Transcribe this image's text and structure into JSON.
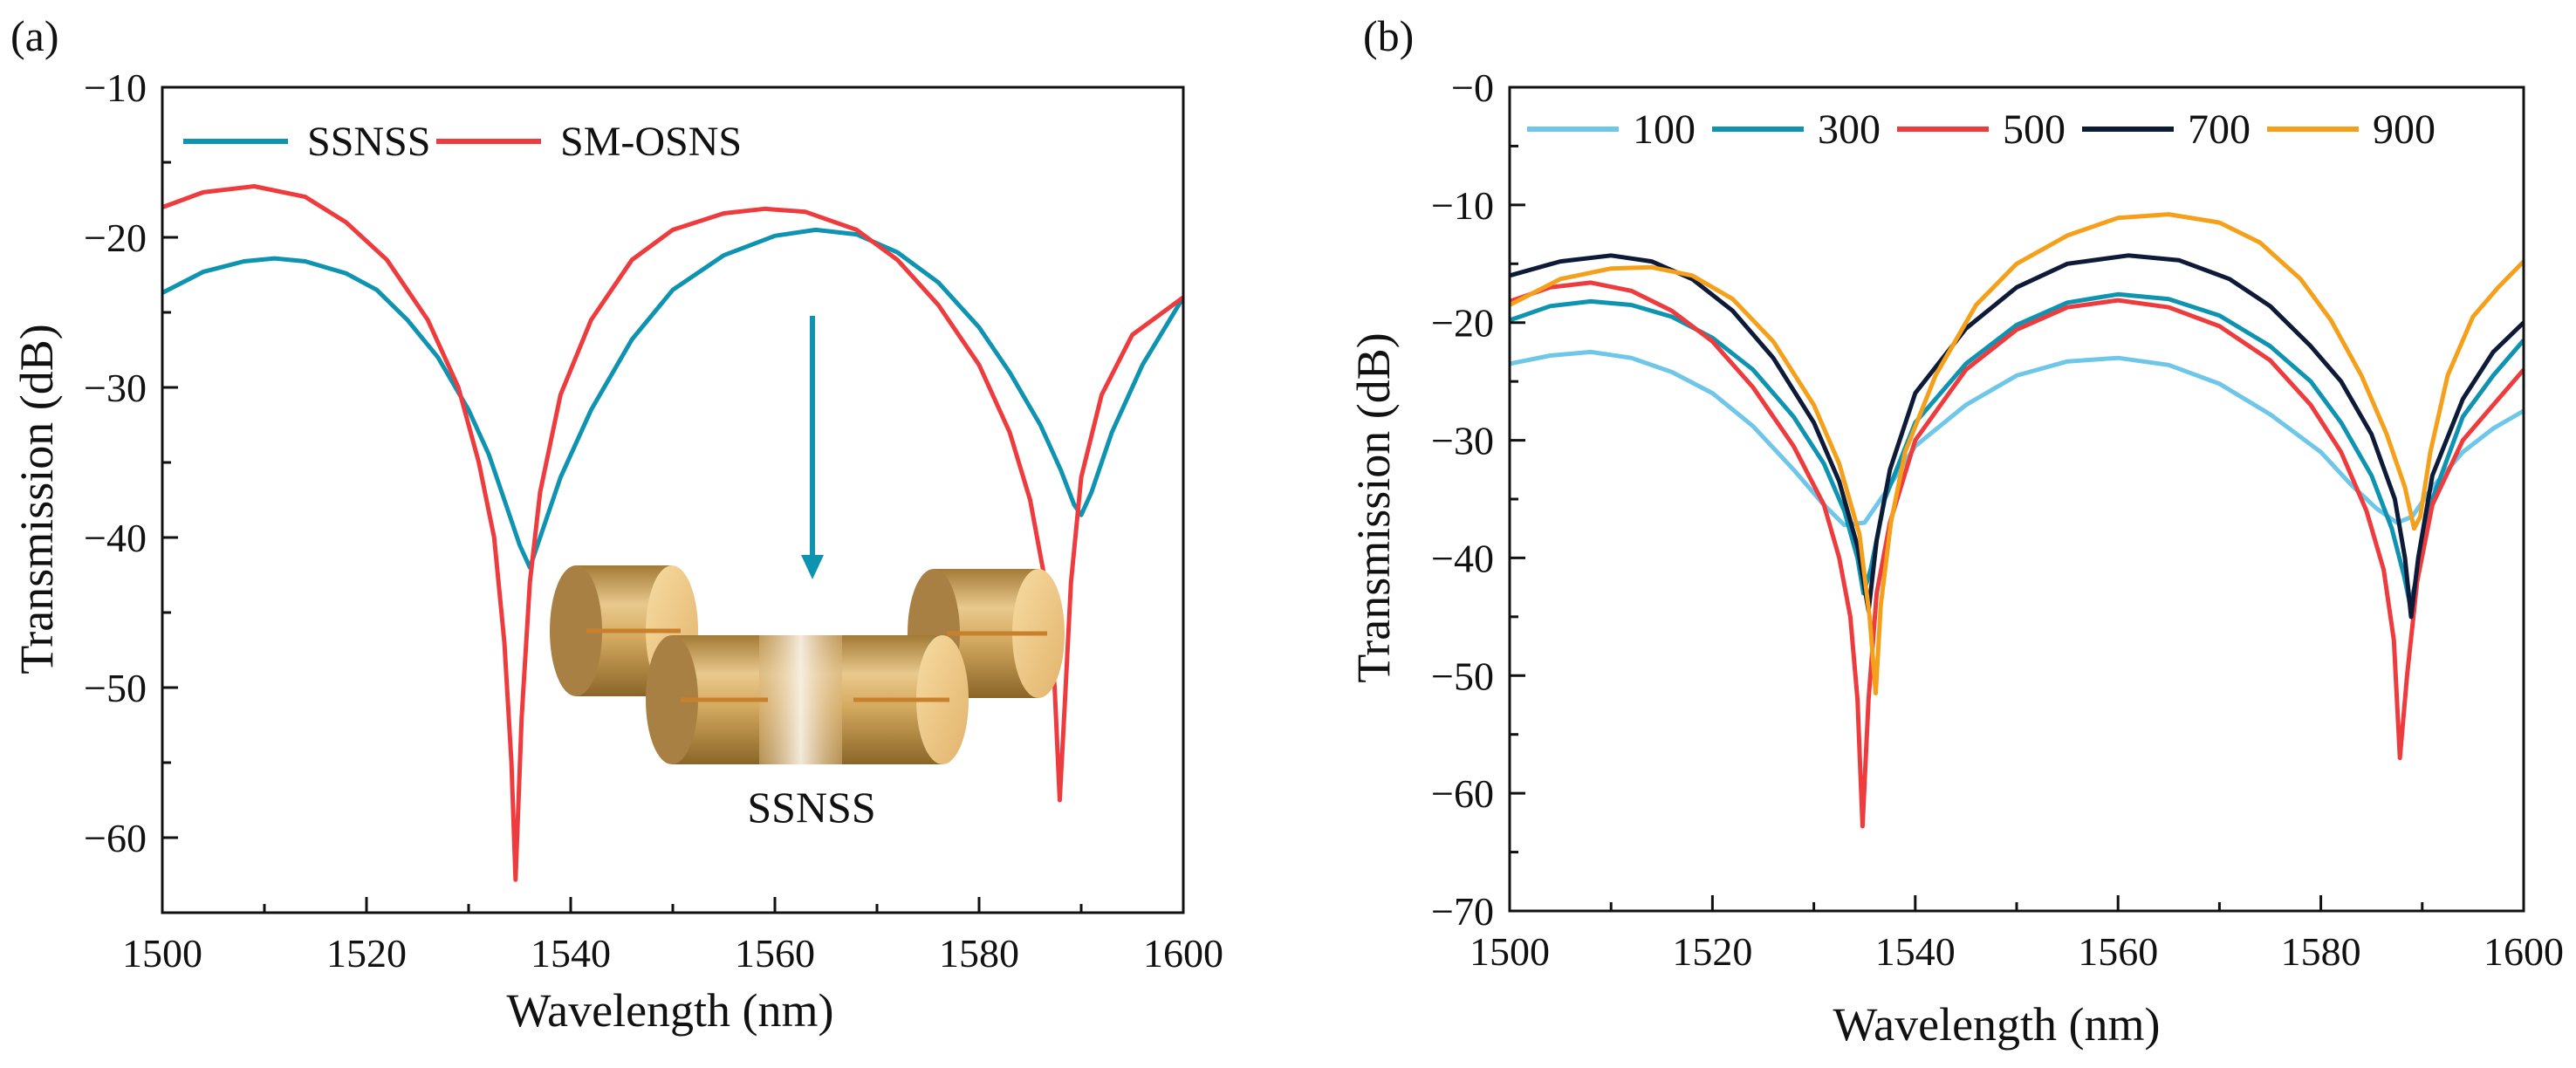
{
  "chart_data": [
    {
      "panel_label": "(a)",
      "type": "line",
      "xlabel": "Wavelength (nm)",
      "ylabel": "Transmission (dB)",
      "xlim": [
        1500,
        1600
      ],
      "ylim": [
        -65,
        -10
      ],
      "xticks": [
        1500,
        1520,
        1540,
        1560,
        1580,
        1600
      ],
      "xtick_labels": [
        "1500",
        "1520",
        "1540",
        "1560",
        "1580",
        "1600"
      ],
      "yticks": [
        -60,
        -50,
        -40,
        -30,
        -20,
        -10
      ],
      "ytick_labels": [
        "−60",
        "−50",
        "−40",
        "−30",
        "−20",
        "−10"
      ],
      "legend_position": "top-left",
      "grid": false,
      "series": [
        {
          "name": "SSNSS",
          "color": "#0e93b1",
          "x": [
            1500,
            1504,
            1508,
            1511,
            1514,
            1518,
            1521,
            1524,
            1527,
            1530,
            1532,
            1533.5,
            1535,
            1536,
            1537,
            1539,
            1542,
            1546,
            1550,
            1555,
            1560,
            1564,
            1568,
            1572,
            1576,
            1580,
            1583,
            1586,
            1588,
            1589.3,
            1590,
            1591,
            1593,
            1596,
            1600
          ],
          "y": [
            -23.7,
            -22.3,
            -21.6,
            -21.4,
            -21.6,
            -22.4,
            -23.5,
            -25.5,
            -28.0,
            -31.5,
            -34.5,
            -37.5,
            -40.5,
            -42.0,
            -40.0,
            -36.0,
            -31.5,
            -26.8,
            -23.5,
            -21.2,
            -19.9,
            -19.5,
            -19.8,
            -21.0,
            -23.0,
            -26.0,
            -29.0,
            -32.5,
            -35.5,
            -37.8,
            -38.5,
            -37.0,
            -33.0,
            -28.5,
            -24.0
          ]
        },
        {
          "name": "SM-OSNS",
          "color": "#ee3b3e",
          "x": [
            1500,
            1504,
            1509,
            1514,
            1518,
            1522,
            1526,
            1529,
            1531,
            1532.5,
            1533.5,
            1534.2,
            1534.6,
            1535.2,
            1536,
            1537,
            1539,
            1542,
            1546,
            1550,
            1555,
            1559,
            1563,
            1568,
            1572,
            1576,
            1580,
            1583,
            1585,
            1586.5,
            1587.4,
            1587.9,
            1588.4,
            1589,
            1590,
            1592,
            1595,
            1600
          ],
          "y": [
            -18.0,
            -17.0,
            -16.6,
            -17.3,
            -19.0,
            -21.5,
            -25.5,
            -30.0,
            -35.0,
            -40.0,
            -47.0,
            -55.0,
            -62.8,
            -52.0,
            -43.0,
            -37.0,
            -30.5,
            -25.5,
            -21.5,
            -19.5,
            -18.4,
            -18.1,
            -18.3,
            -19.5,
            -21.5,
            -24.5,
            -28.5,
            -33.0,
            -37.5,
            -43.0,
            -50.0,
            -57.5,
            -51.0,
            -43.0,
            -36.0,
            -30.5,
            -26.5,
            -24.0
          ]
        }
      ],
      "inset_label": "SSNSS"
    },
    {
      "panel_label": "(b)",
      "type": "line",
      "xlabel": "Wavelength (nm)",
      "ylabel": "Transmission (dB)",
      "xlim": [
        1500,
        1600
      ],
      "ylim": [
        -70,
        0
      ],
      "xticks": [
        1500,
        1520,
        1540,
        1560,
        1580,
        1600
      ],
      "xtick_labels": [
        "1500",
        "1520",
        "1540",
        "1560",
        "1580",
        "1600"
      ],
      "yticks": [
        -70,
        -60,
        -50,
        -40,
        -30,
        -20,
        -10,
        0
      ],
      "ytick_labels": [
        "−70",
        "−60",
        "−50",
        "−40",
        "−30",
        "−20",
        "−10",
        "−0"
      ],
      "legend_position": "top",
      "grid": false,
      "series": [
        {
          "name": "100",
          "color": "#6ec6e8",
          "x": [
            1500,
            1504,
            1508,
            1512,
            1516,
            1520,
            1524,
            1528,
            1531,
            1533,
            1535,
            1537,
            1540,
            1545,
            1550,
            1555,
            1560,
            1565,
            1570,
            1575,
            1580,
            1583,
            1585.5,
            1587.5,
            1589,
            1591,
            1594,
            1597,
            1600
          ],
          "y": [
            -23.5,
            -22.8,
            -22.5,
            -23.0,
            -24.2,
            -26.0,
            -28.8,
            -32.5,
            -35.5,
            -37.2,
            -37.0,
            -34.5,
            -30.5,
            -27.0,
            -24.5,
            -23.3,
            -23.0,
            -23.6,
            -25.2,
            -27.8,
            -31.0,
            -33.8,
            -35.8,
            -37.0,
            -36.5,
            -34.0,
            -31.0,
            -29.0,
            -27.5
          ]
        },
        {
          "name": "300",
          "color": "#0e93b1",
          "x": [
            1500,
            1504,
            1508,
            1512,
            1516,
            1520,
            1524,
            1528,
            1531,
            1533,
            1534.3,
            1534.9,
            1535.6,
            1537,
            1540,
            1545,
            1550,
            1555,
            1560,
            1565,
            1570,
            1575,
            1579,
            1582,
            1585,
            1587,
            1588.2,
            1588.8,
            1589.5,
            1591,
            1594,
            1597,
            1600
          ],
          "y": [
            -19.8,
            -18.6,
            -18.2,
            -18.5,
            -19.5,
            -21.3,
            -24.0,
            -28.0,
            -32.0,
            -36.0,
            -40.0,
            -43.0,
            -41.0,
            -35.0,
            -28.5,
            -23.5,
            -20.2,
            -18.3,
            -17.6,
            -18.0,
            -19.4,
            -22.0,
            -25.0,
            -28.5,
            -33.0,
            -37.5,
            -41.5,
            -44.0,
            -41.5,
            -35.0,
            -28.0,
            -24.5,
            -21.5
          ]
        },
        {
          "name": "500",
          "color": "#ee3b3e",
          "x": [
            1500,
            1504,
            1508,
            1512,
            1516,
            1520,
            1524,
            1528,
            1531,
            1532.5,
            1533.6,
            1534.3,
            1534.8,
            1535.4,
            1536.2,
            1537.5,
            1540,
            1545,
            1550,
            1555,
            1560,
            1565,
            1570,
            1575,
            1579,
            1582,
            1584.5,
            1586.2,
            1587.2,
            1587.8,
            1588.5,
            1589.5,
            1591,
            1594,
            1597,
            1600
          ],
          "y": [
            -18.2,
            -17.0,
            -16.6,
            -17.3,
            -19.0,
            -21.6,
            -25.5,
            -30.5,
            -35.5,
            -40.0,
            -45.0,
            -52.0,
            -62.8,
            -52.0,
            -43.0,
            -37.0,
            -30.0,
            -24.0,
            -20.6,
            -18.7,
            -18.1,
            -18.7,
            -20.3,
            -23.2,
            -27.0,
            -31.0,
            -36.0,
            -41.0,
            -47.0,
            -57.0,
            -50.0,
            -42.0,
            -35.5,
            -30.0,
            -27.0,
            -24.0
          ]
        },
        {
          "name": "700",
          "color": "#0d1b38",
          "x": [
            1500,
            1505,
            1510,
            1514,
            1518,
            1522,
            1526,
            1530,
            1532.5,
            1534.3,
            1535.4,
            1536.2,
            1537.5,
            1540,
            1545,
            1550,
            1555,
            1561,
            1566,
            1571,
            1575,
            1579,
            1582,
            1585,
            1587.3,
            1588.3,
            1588.9,
            1589.6,
            1591,
            1594,
            1597,
            1600
          ],
          "y": [
            -16.0,
            -14.8,
            -14.3,
            -14.8,
            -16.3,
            -19.0,
            -23.0,
            -28.5,
            -33.5,
            -39.0,
            -44.5,
            -38.5,
            -32.5,
            -26.0,
            -20.5,
            -17.0,
            -15.0,
            -14.3,
            -14.7,
            -16.3,
            -18.6,
            -22.0,
            -25.0,
            -29.5,
            -35.0,
            -40.0,
            -45.0,
            -40.0,
            -33.0,
            -26.5,
            -22.5,
            -20.0
          ]
        },
        {
          "name": "900",
          "color": "#f5a01a",
          "x": [
            1500,
            1505,
            1510,
            1514,
            1518,
            1522,
            1526,
            1530,
            1532.5,
            1534.5,
            1535.5,
            1536.1,
            1536.6,
            1537.6,
            1539,
            1542,
            1546,
            1550,
            1555,
            1560,
            1565,
            1570,
            1574,
            1578,
            1581,
            1584,
            1586.5,
            1588.3,
            1589.2,
            1589.8,
            1590.8,
            1592.5,
            1595,
            1597.5,
            1600
          ],
          "y": [
            -18.5,
            -16.3,
            -15.4,
            -15.3,
            -16.0,
            -18.0,
            -21.6,
            -27.0,
            -32.0,
            -38.0,
            -45.0,
            -51.5,
            -44.0,
            -37.0,
            -31.0,
            -24.5,
            -18.5,
            -15.0,
            -12.6,
            -11.1,
            -10.8,
            -11.5,
            -13.2,
            -16.3,
            -19.8,
            -24.5,
            -29.5,
            -34.0,
            -37.5,
            -36.5,
            -31.0,
            -24.5,
            -19.5,
            -17.0,
            -14.8
          ]
        }
      ]
    }
  ]
}
